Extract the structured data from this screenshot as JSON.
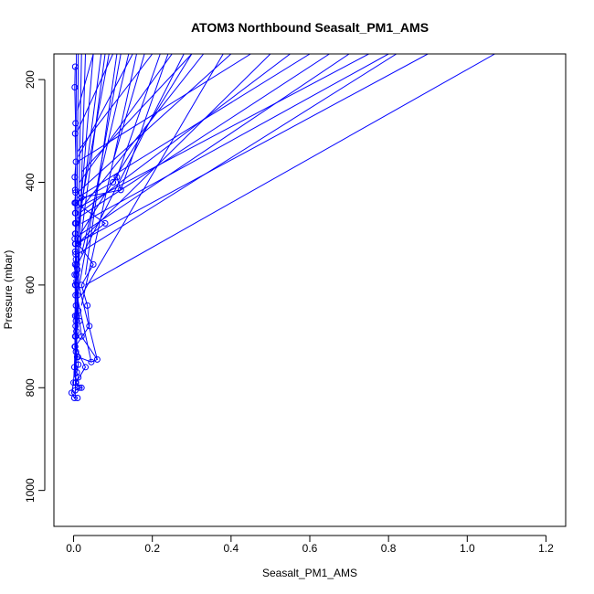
{
  "chart_data": {
    "type": "line",
    "title": "ATOM3 Northbound Seasalt_PM1_AMS",
    "xlabel": "Seasalt_PM1_AMS",
    "ylabel": "Pressure (mbar)",
    "xlim": [
      -0.05,
      1.25
    ],
    "ylim": [
      1070,
      150
    ],
    "y_axis_inverted": true,
    "x_ticks": [
      0.0,
      0.2,
      0.4,
      0.6,
      0.8,
      1.0,
      1.2
    ],
    "x_tick_labels": [
      "0.0",
      "0.2",
      "0.4",
      "0.6",
      "0.8",
      "1.0",
      "1.2"
    ],
    "y_ticks": [
      200,
      400,
      600,
      800,
      1000
    ],
    "y_tick_labels": [
      "200",
      "400",
      "600",
      "800",
      "1000"
    ],
    "grid": false,
    "legend": "none",
    "series_color": "#0000ff",
    "marker": "open-circle",
    "series": [
      {
        "x": [
          0.004,
          0.003,
          0.005,
          0.004,
          0.006,
          0.003,
          0.004,
          0.005,
          0.003,
          0.004,
          0.006,
          0.004,
          0.003,
          0.005,
          0.004,
          0.006,
          0.008,
          0.01,
          0.007,
          0.005,
          0.01,
          0.012,
          0.015,
          0.02,
          0.06,
          0.045,
          0.011,
          0.006,
          0.004,
          0.007,
          0.005,
          0.006,
          0.004,
          0.005,
          0.003,
          0.009,
          0.012,
          0.008,
          0.012,
          0.005,
          0.015,
          0.004,
          0.02,
          0.006,
          0.03,
          0.004,
          0.04,
          0.035,
          0.02,
          0.05,
          0.012,
          0.08,
          0.006,
          0.1,
          0.11,
          0.12,
          0.02,
          0.005,
          0.005,
          0.004,
          0.005,
          0.004,
          0.005,
          0.004,
          0.003,
          0.004,
          0.005,
          0.006,
          0.008,
          0.005,
          0.002,
          0.0,
          -0.005,
          0.002,
          0.01
        ],
        "y": [
          175,
          215,
          285,
          305,
          360,
          390,
          415,
          420,
          440,
          460,
          480,
          500,
          510,
          520,
          535,
          550,
          560,
          570,
          580,
          600,
          620,
          650,
          670,
          700,
          745,
          750,
          740,
          730,
          700,
          690,
          680,
          670,
          660,
          700,
          720,
          740,
          755,
          770,
          780,
          790,
          800,
          805,
          800,
          790,
          760,
          720,
          680,
          640,
          600,
          560,
          520,
          480,
          440,
          400,
          390,
          415,
          430,
          440,
          460,
          480,
          500,
          520,
          540,
          560,
          580,
          600,
          620,
          640,
          660,
          700,
          760,
          790,
          810,
          820,
          820
        ]
      }
    ],
    "excursions": [
      {
        "x": [
          0.01,
          0.2
        ],
        "y": [
          340,
          150
        ]
      },
      {
        "x": [
          0.02,
          0.3
        ],
        "y": [
          380,
          150
        ]
      },
      {
        "x": [
          0.01,
          0.4
        ],
        "y": [
          420,
          150
        ]
      },
      {
        "x": [
          0.015,
          0.55
        ],
        "y": [
          460,
          150
        ]
      },
      {
        "x": [
          0.02,
          0.7
        ],
        "y": [
          500,
          150
        ]
      },
      {
        "x": [
          0.01,
          0.82
        ],
        "y": [
          540,
          150
        ]
      },
      {
        "x": [
          0.03,
          1.07
        ],
        "y": [
          600,
          150
        ]
      },
      {
        "x": [
          0.02,
          0.8
        ],
        "y": [
          480,
          150
        ]
      },
      {
        "x": [
          0.01,
          0.6
        ],
        "y": [
          430,
          150
        ]
      },
      {
        "x": [
          0.01,
          0.45
        ],
        "y": [
          360,
          150
        ]
      },
      {
        "x": [
          0.02,
          0.33
        ],
        "y": [
          450,
          150
        ]
      },
      {
        "x": [
          0.015,
          0.25
        ],
        "y": [
          400,
          150
        ]
      },
      {
        "x": [
          0.012,
          0.15
        ],
        "y": [
          350,
          150
        ]
      },
      {
        "x": [
          0.01,
          0.1
        ],
        "y": [
          300,
          150
        ]
      },
      {
        "x": [
          0.01,
          0.05
        ],
        "y": [
          260,
          150
        ]
      },
      {
        "x": [
          0.12,
          0.24
        ],
        "y": [
          415,
          150
        ]
      },
      {
        "x": [
          0.11,
          0.22
        ],
        "y": [
          390,
          150
        ]
      },
      {
        "x": [
          0.1,
          0.18
        ],
        "y": [
          360,
          150
        ]
      },
      {
        "x": [
          0.06,
          0.0
        ],
        "y": [
          745,
          560
        ]
      },
      {
        "x": [
          0.045,
          0.0
        ],
        "y": [
          750,
          590
        ]
      },
      {
        "x": [
          0.01,
          0.05
        ],
        "y": [
          520,
          150
        ]
      },
      {
        "x": [
          0.01,
          0.08
        ],
        "y": [
          560,
          150
        ]
      },
      {
        "x": [
          0.01,
          0.12
        ],
        "y": [
          620,
          150
        ]
      },
      {
        "x": [
          0.02,
          0.16
        ],
        "y": [
          640,
          150
        ]
      },
      {
        "x": [
          0.01,
          0.28
        ],
        "y": [
          560,
          150
        ]
      },
      {
        "x": [
          0.01,
          0.5
        ],
        "y": [
          520,
          150
        ]
      },
      {
        "x": [
          0.02,
          0.38
        ],
        "y": [
          620,
          150
        ]
      },
      {
        "x": [
          0.01,
          0.65
        ],
        "y": [
          470,
          150
        ]
      },
      {
        "x": [
          0.01,
          0.75
        ],
        "y": [
          450,
          150
        ]
      },
      {
        "x": [
          0.005,
          0.9
        ],
        "y": [
          520,
          150
        ]
      },
      {
        "x": [
          0.01,
          0.3
        ],
        "y": [
          510,
          150
        ]
      },
      {
        "x": [
          0.005,
          0.02
        ],
        "y": [
          800,
          150
        ]
      },
      {
        "x": [
          0.006,
          0.03
        ],
        "y": [
          760,
          150
        ]
      },
      {
        "x": [
          0.004,
          0.012
        ],
        "y": [
          820,
          150
        ]
      },
      {
        "x": [
          0.003,
          0.007
        ],
        "y": [
          780,
          150
        ]
      },
      {
        "x": [
          0.02,
          0.14
        ],
        "y": [
          540,
          150
        ]
      },
      {
        "x": [
          0.03,
          0.11
        ],
        "y": [
          580,
          150
        ]
      },
      {
        "x": [
          0.02,
          0.09
        ],
        "y": [
          440,
          150
        ]
      },
      {
        "x": [
          0.015,
          0.07
        ],
        "y": [
          480,
          150
        ]
      }
    ]
  }
}
